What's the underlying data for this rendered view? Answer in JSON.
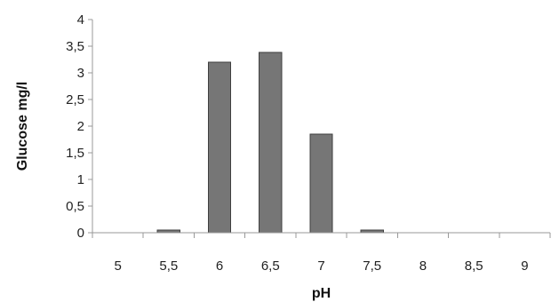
{
  "chart_data": {
    "type": "bar",
    "categories": [
      "5",
      "5,5",
      "6",
      "6,5",
      "7",
      "7,5",
      "8",
      "8,5",
      "9"
    ],
    "series": [
      {
        "values": [
          0,
          0.05,
          3.2,
          3.38,
          1.85,
          0.05,
          0,
          0,
          0
        ],
        "color": "#767676"
      }
    ],
    "xlabel": "pH",
    "ylabel": "Glucose mg/l",
    "ylim": [
      0,
      4
    ],
    "yticks": [
      {
        "value": 0,
        "label": "0"
      },
      {
        "value": 0.5,
        "label": "0,5"
      },
      {
        "value": 1,
        "label": "1"
      },
      {
        "value": 1.5,
        "label": "1,5"
      },
      {
        "value": 2,
        "label": "2"
      },
      {
        "value": 2.5,
        "label": "2,5"
      },
      {
        "value": 3,
        "label": "3"
      },
      {
        "value": 3.5,
        "label": "3,5"
      },
      {
        "value": 4,
        "label": "4"
      }
    ],
    "grid": false,
    "legend": "none"
  }
}
